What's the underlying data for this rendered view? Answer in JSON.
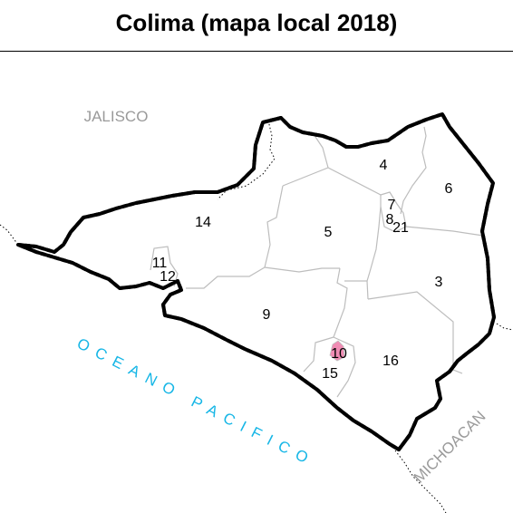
{
  "title": "Colima (mapa local 2018)",
  "neighbors": {
    "jalisco": "JALISCO",
    "michoacan": "MICHOACAN",
    "ocean": "OCEANO PACIFICO"
  },
  "districts": [
    "4",
    "6",
    "7",
    "8",
    "21",
    "5",
    "14",
    "11",
    "12",
    "3",
    "9",
    "10",
    "15",
    "16"
  ],
  "colors": {
    "state_border_dash": "#e41a1c",
    "state_border_base": "#000000",
    "internal_border": "#bdbdbd",
    "highlight_district": "#f08cb4",
    "ocean_label": "#16b6e6",
    "neighbor_label": "#9a9a9a"
  },
  "highlighted_district": "10"
}
